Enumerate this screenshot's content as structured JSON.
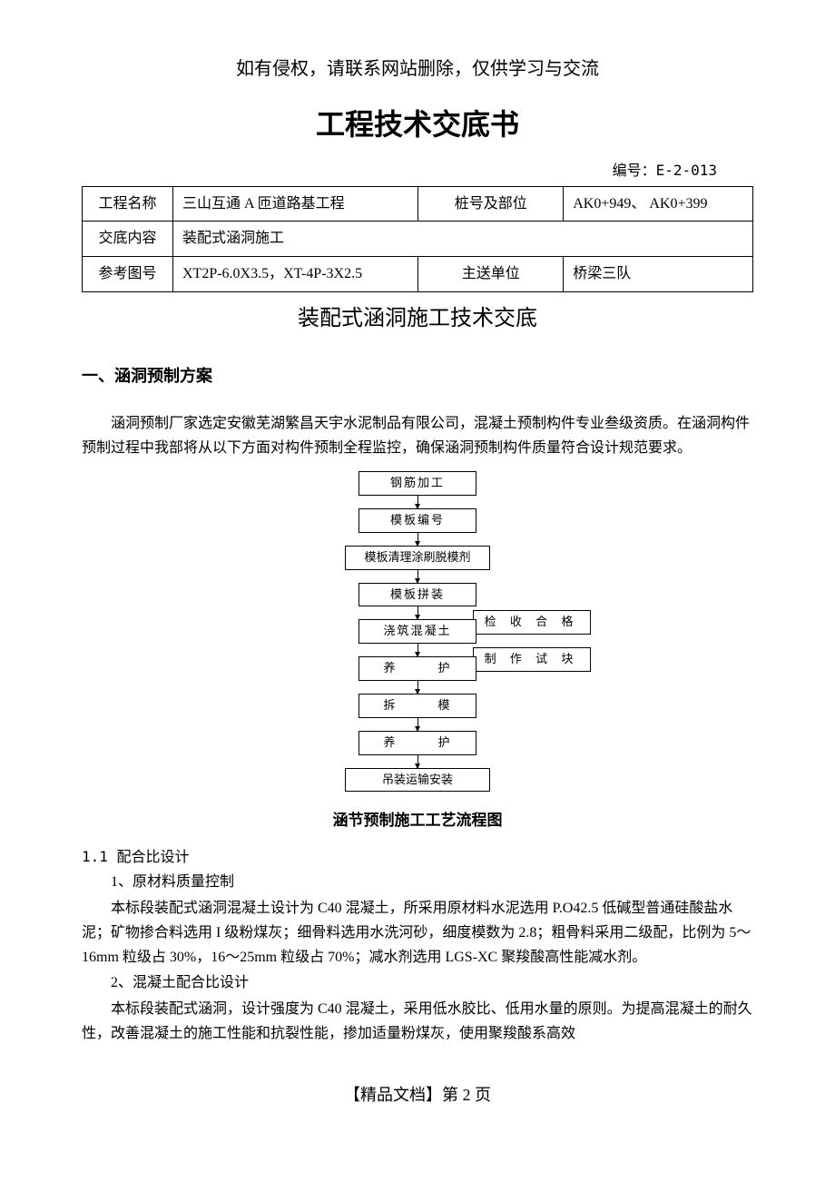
{
  "header_note": "如有侵权，请联系网站删除，仅供学习与交流",
  "doc_title": "工程技术交底书",
  "doc_number_label": "编号：E-2-013",
  "info_table": {
    "rows": [
      {
        "label": "工程名称",
        "value": "三山互通 A 匝道路基工程",
        "label2": "桩号及部位",
        "value2": "AK0+949、 AK0+399"
      },
      {
        "label": "交底内容",
        "value": "装配式涵洞施工",
        "span": true
      },
      {
        "label": "参考图号",
        "value": "XT2P-6.0X3.5，XT-4P-3X2.5",
        "label2": "主送单位",
        "value2": "桥梁三队"
      }
    ]
  },
  "section_title": "装配式涵洞施工技术交底",
  "heading_1": "一、涵洞预制方案",
  "para_1": "涵洞预制厂家选定安徽芜湖繁昌天宇水泥制品有限公司，混凝土预制构件专业叁级资质。在涵洞构件预制过程中我部将从以下方面对构件预制全程监控，确保涵洞预制构件质量符合设计规范要求。",
  "flowchart": {
    "steps": [
      {
        "text": "钢筋加工"
      },
      {
        "text": "模板编号"
      },
      {
        "text": "模板清理涂刷脱模剂",
        "wide": true
      },
      {
        "text": "模板拼装",
        "branch_after": {
          "text": "检 收 合 格"
        }
      },
      {
        "text": "浇筑混凝土",
        "branch_after": {
          "text": "制 作 试 块"
        }
      },
      {
        "text": "养　　　护"
      },
      {
        "text": "拆　　　模"
      },
      {
        "text": "养　　　护"
      },
      {
        "text": "吊装运输安装",
        "wide": true
      }
    ],
    "caption": "涵节预制施工工艺流程图"
  },
  "sub_1_1": "1.1 配合比设计",
  "item_1": "1、原材料质量控制",
  "para_2": "本标段装配式涵洞混凝土设计为 C40 混凝土，所采用原材料水泥选用 P.O42.5 低碱型普通硅酸盐水泥；矿物掺合料选用 I 级粉煤灰；细骨料选用水洗河砂，细度模数为 2.8；粗骨料采用二级配，比例为 5～16mm 粒级占 30%，16～25mm 粒级占 70%；减水剂选用 LGS-XC 聚羧酸高性能减水剂。",
  "item_2": "2、混凝土配合比设计",
  "para_3": "本标段装配式涵洞，设计强度为 C40 混凝土，采用低水胶比、低用水量的原则。为提高混凝土的耐久性，改善混凝土的施工性能和抗裂性能，掺加适量粉煤灰，使用聚羧酸系高效",
  "footer": "【精品文档】第 2 页",
  "colors": {
    "text": "#000000",
    "background": "#ffffff",
    "border": "#000000"
  },
  "typography": {
    "body_font": "SimSun",
    "title_size_pt": 24,
    "section_title_size_pt": 18,
    "body_size_pt": 12
  }
}
